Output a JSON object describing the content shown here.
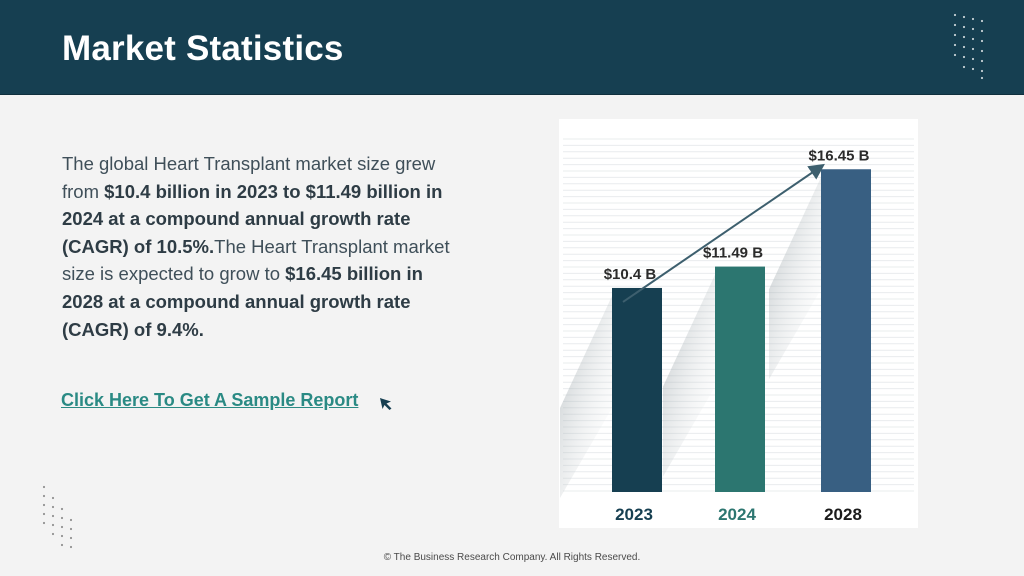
{
  "header": {
    "title": "Market Statistics"
  },
  "body": {
    "p1": "The global Heart Transplant market size grew from ",
    "b1": "$10.4 billion in 2023 to $11.49 billion in 2024 at a compound annual growth rate (CAGR) of 10.5%.",
    "p2": "The Heart Transplant market size is expected to grow to ",
    "b2": "$16.45 billion in 2028 at a compound annual growth rate (CAGR) of 9.4%."
  },
  "cta": {
    "label": "Click Here To Get A Sample Report"
  },
  "footer": {
    "text": "© The Business Research Company. All Rights Reserved."
  },
  "colors": {
    "header_bg": "#163f51",
    "bar_2023": "#163f51",
    "bar_2024": "#2c7670",
    "bar_2028": "#385f82",
    "link": "#2a8a84"
  },
  "icons": [
    "cursor-arrow-icon",
    "decorative-dot-grid"
  ],
  "chart_data": {
    "type": "bar",
    "categories": [
      "2023",
      "2024",
      "2028"
    ],
    "values": [
      10.4,
      11.49,
      16.45
    ],
    "value_labels": [
      "$10.4 B",
      "$11.49 B",
      "$16.45 B"
    ],
    "bar_colors": [
      "#163f51",
      "#2c7670",
      "#385f82"
    ],
    "category_colors": [
      "#163f51",
      "#2c7670",
      "#1b1b1b"
    ],
    "trend_arrow": true,
    "grid": true,
    "title": "",
    "xlabel": "",
    "ylabel": ""
  }
}
